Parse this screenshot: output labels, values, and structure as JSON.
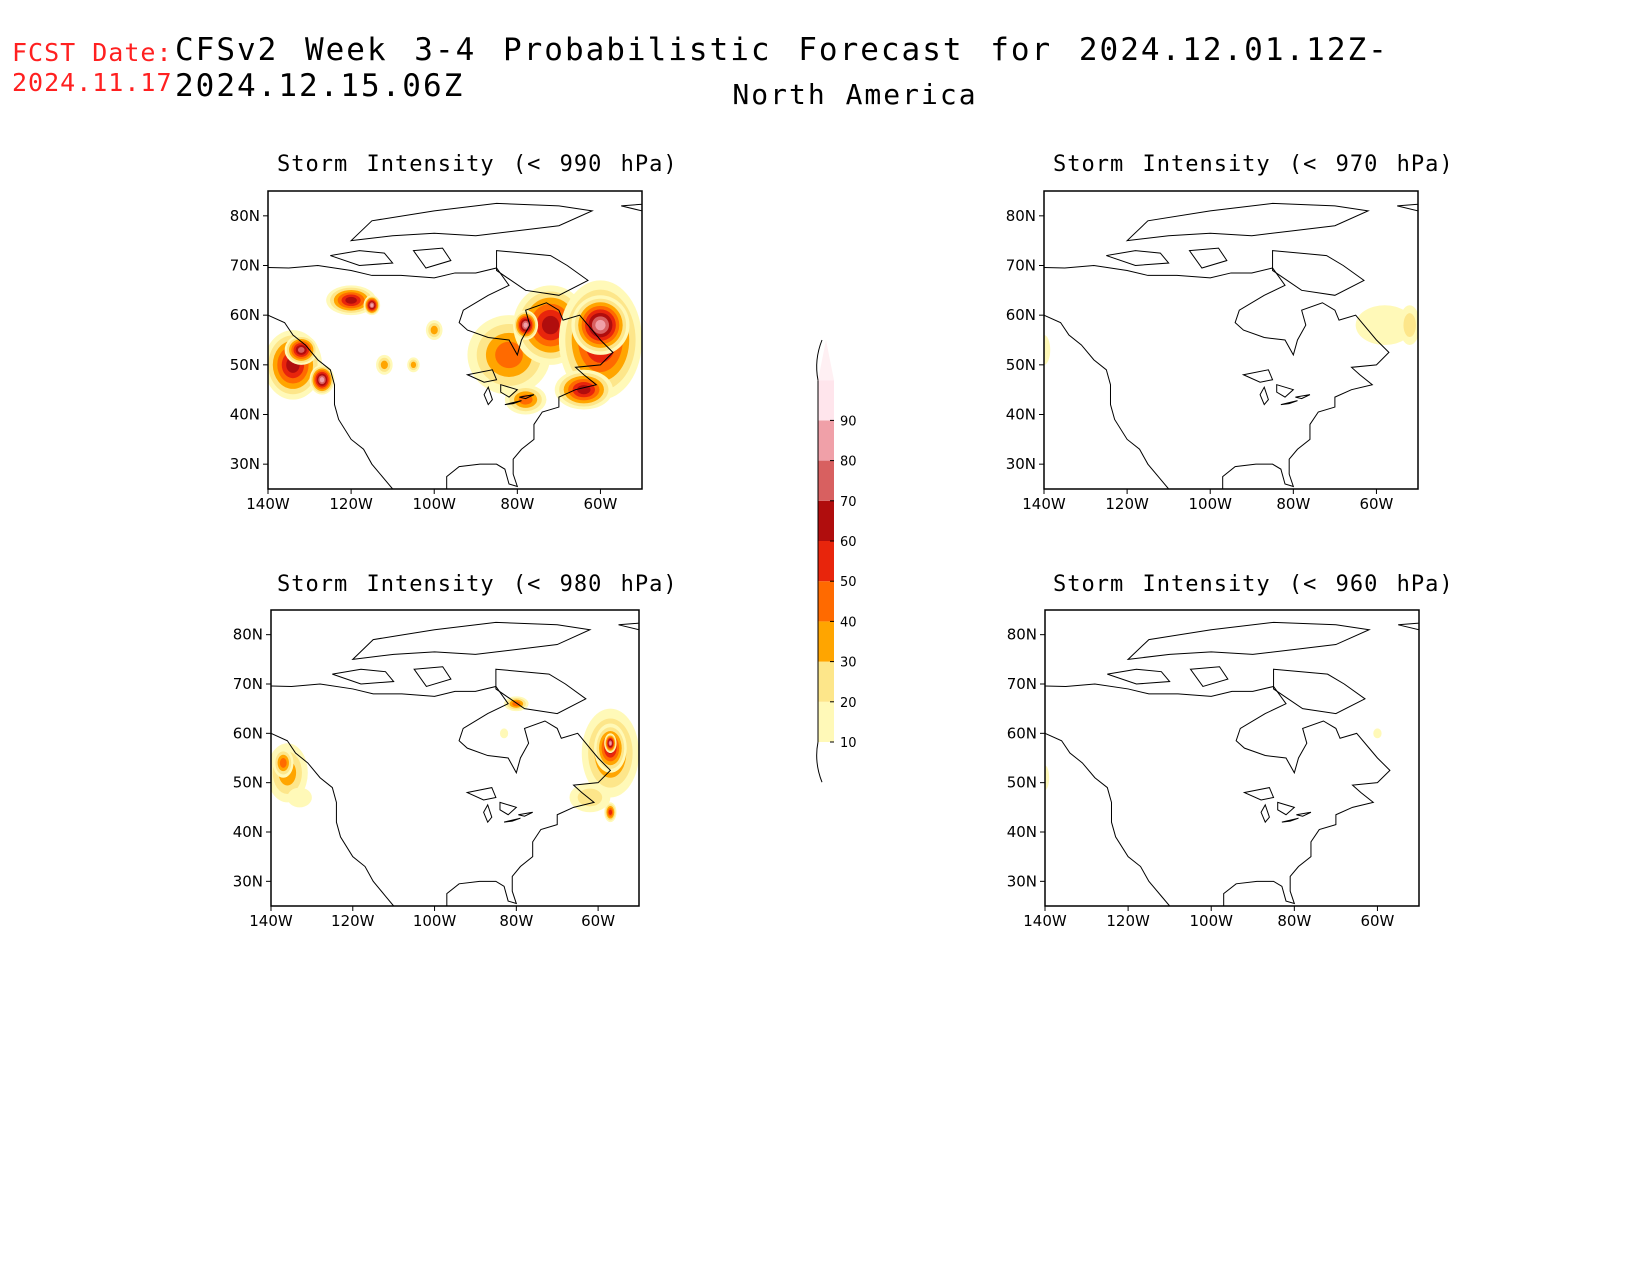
{
  "header": {
    "fcst_label": "FCST Date:",
    "fcst_date": "2024.11.17",
    "title": "CFSv2 Week 3-4 Probabilistic Forecast for 2024.12.01.12Z-2024.12.15.06Z",
    "region": "North America"
  },
  "axes": {
    "lat_ticks": [
      "80N",
      "70N",
      "60N",
      "50N",
      "40N",
      "30N"
    ],
    "lat_values": [
      80,
      70,
      60,
      50,
      40,
      30
    ],
    "lon_ticks": [
      "140W",
      "120W",
      "100W",
      "80W",
      "60W"
    ],
    "lon_values": [
      -140,
      -120,
      -100,
      -80,
      -60
    ],
    "lon_range": [
      -140,
      -50
    ],
    "lat_range": [
      25,
      85
    ]
  },
  "colorbar": {
    "levels": [
      "10",
      "20",
      "30",
      "40",
      "50",
      "60",
      "70",
      "80",
      "90"
    ],
    "colors": [
      "#fff9b8",
      "#fde68a",
      "#ffa500",
      "#ff6a00",
      "#e8250c",
      "#b00d0d",
      "#d86060",
      "#f0a0a8",
      "#ffe5ec"
    ]
  },
  "panels": [
    {
      "id": "p990",
      "title": "Storm Intensity (< 990 hPa)",
      "blobs": [
        {
          "lon": -134,
          "lat": 50,
          "rx": 7,
          "ry": 7,
          "level": 5
        },
        {
          "lon": -132,
          "lat": 53,
          "rx": 4,
          "ry": 3,
          "level": 6
        },
        {
          "lon": -127,
          "lat": 47,
          "rx": 3,
          "ry": 3,
          "level": 7
        },
        {
          "lon": -120,
          "lat": 63,
          "rx": 6,
          "ry": 3,
          "level": 5
        },
        {
          "lon": -115,
          "lat": 62,
          "rx": 2,
          "ry": 2,
          "level": 7
        },
        {
          "lon": -112,
          "lat": 50,
          "rx": 2,
          "ry": 2,
          "level": 2
        },
        {
          "lon": -105,
          "lat": 50,
          "rx": 1.5,
          "ry": 1.5,
          "level": 2
        },
        {
          "lon": -100,
          "lat": 57,
          "rx": 2,
          "ry": 2,
          "level": 2
        },
        {
          "lon": -82,
          "lat": 52,
          "rx": 10,
          "ry": 8,
          "level": 3
        },
        {
          "lon": -72,
          "lat": 58,
          "rx": 9,
          "ry": 8,
          "level": 5
        },
        {
          "lon": -60,
          "lat": 55,
          "rx": 10,
          "ry": 12,
          "level": 5
        },
        {
          "lon": -60,
          "lat": 58,
          "rx": 7,
          "ry": 6,
          "level": 7
        },
        {
          "lon": -78,
          "lat": 58,
          "rx": 3,
          "ry": 3,
          "level": 7
        },
        {
          "lon": -64,
          "lat": 45,
          "rx": 7,
          "ry": 4,
          "level": 5
        },
        {
          "lon": -78,
          "lat": 43,
          "rx": 5,
          "ry": 3,
          "level": 3
        }
      ]
    },
    {
      "id": "p970",
      "title": "Storm Intensity (< 970 hPa)",
      "blobs": [
        {
          "lon": -140,
          "lat": 53,
          "rx": 1.5,
          "ry": 3,
          "level": 0
        },
        {
          "lon": -58,
          "lat": 58,
          "rx": 7,
          "ry": 4,
          "level": 0
        },
        {
          "lon": -52,
          "lat": 58,
          "rx": 2.5,
          "ry": 4,
          "level": 1
        }
      ]
    },
    {
      "id": "p980",
      "title": "Storm Intensity (< 980 hPa)",
      "blobs": [
        {
          "lon": -136,
          "lat": 52,
          "rx": 5,
          "ry": 6,
          "level": 2
        },
        {
          "lon": -137,
          "lat": 54,
          "rx": 2.5,
          "ry": 3,
          "level": 3
        },
        {
          "lon": -133,
          "lat": 47,
          "rx": 3,
          "ry": 2,
          "level": 0
        },
        {
          "lon": -57,
          "lat": 56,
          "rx": 7,
          "ry": 9,
          "level": 3
        },
        {
          "lon": -57,
          "lat": 57,
          "rx": 4,
          "ry": 5,
          "level": 5
        },
        {
          "lon": -57,
          "lat": 58,
          "rx": 1.5,
          "ry": 2,
          "level": 7
        },
        {
          "lon": -62,
          "lat": 47,
          "rx": 5,
          "ry": 3,
          "level": 1
        },
        {
          "lon": -57,
          "lat": 44,
          "rx": 1.5,
          "ry": 2,
          "level": 4
        },
        {
          "lon": -80,
          "lat": 66,
          "rx": 3,
          "ry": 1.5,
          "level": 3
        },
        {
          "lon": -83,
          "lat": 60,
          "rx": 1,
          "ry": 1,
          "level": 0
        }
      ]
    },
    {
      "id": "p960",
      "title": "Storm Intensity (< 960 hPa)",
      "blobs": [
        {
          "lon": -140,
          "lat": 51,
          "rx": 1,
          "ry": 2.5,
          "level": 0
        },
        {
          "lon": -60,
          "lat": 60,
          "rx": 1,
          "ry": 1,
          "level": 0
        }
      ]
    }
  ]
}
